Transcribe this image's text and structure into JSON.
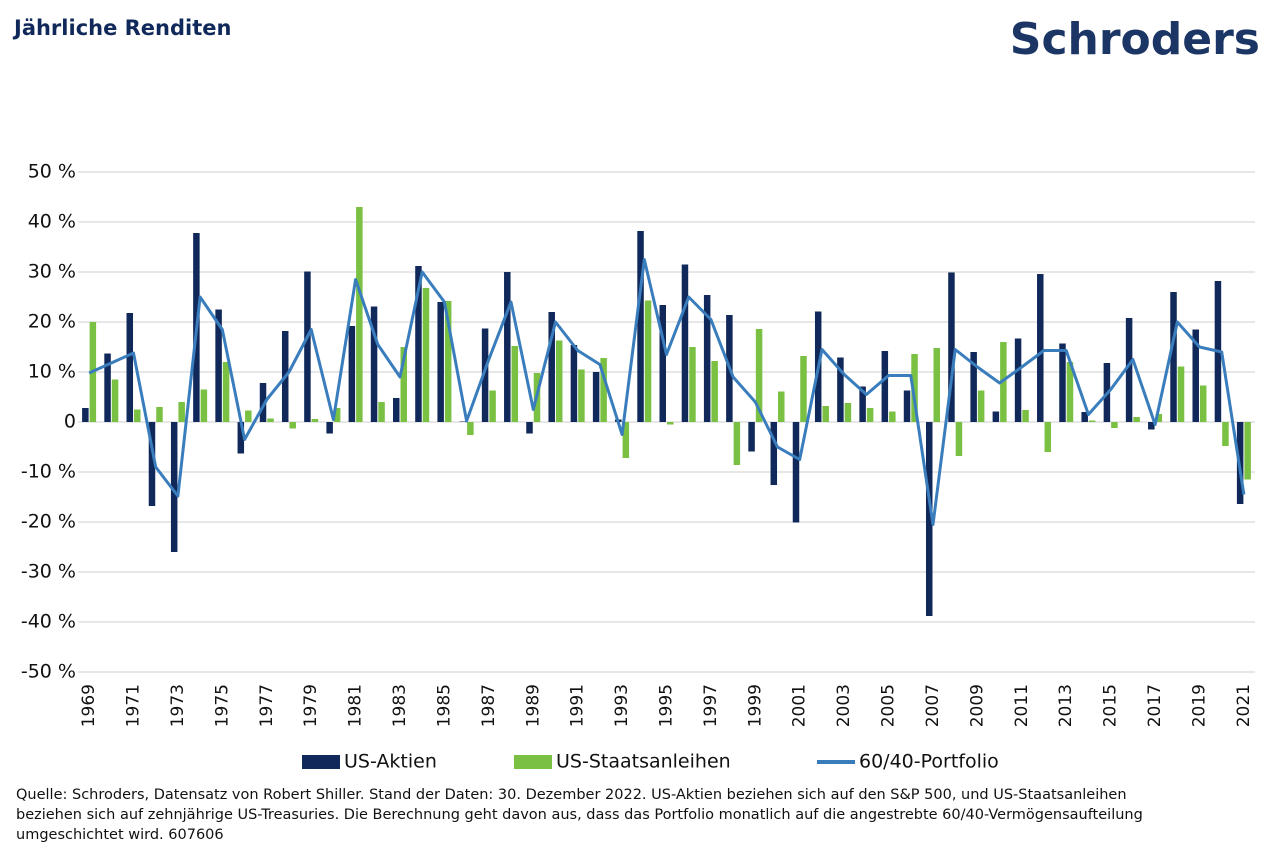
{
  "chart_data": {
    "type": "bar",
    "title": "Jährliche Renditen",
    "logo": "Schroders",
    "categories": [
      "1969",
      null,
      "1971",
      null,
      "1973",
      null,
      "1975",
      null,
      "1977",
      null,
      "1979",
      null,
      "1981",
      null,
      "1983",
      null,
      "1985",
      null,
      "1987",
      null,
      "1989",
      null,
      "1991",
      null,
      "1993",
      null,
      "1995",
      null,
      "1997",
      null,
      "1999",
      null,
      "2001",
      null,
      "2003",
      null,
      "2005",
      null,
      "2007",
      null,
      "2009",
      null,
      "2011",
      null,
      "2013",
      null,
      "2015",
      null,
      "2017",
      null,
      "2019",
      null,
      "2021"
    ],
    "series": [
      {
        "name": "US-Aktien",
        "type": "bar",
        "color": "#10295a",
        "values": [
          2.8,
          13.7,
          21.8,
          -16.8,
          -26,
          37.8,
          22.5,
          -6.3,
          7.8,
          18.2,
          30.1,
          -2.3,
          19.2,
          23.1,
          4.8,
          31.2,
          24,
          0.1,
          18.7,
          30,
          -2.3,
          22,
          15.4,
          10,
          0.5,
          38.2,
          23.4,
          31.5,
          25.4,
          21.4,
          -5.9,
          -12.6,
          -20.1,
          22.1,
          12.9,
          7.1,
          14.2,
          6.3,
          -38.8,
          29.9,
          14,
          2.1,
          16.7,
          29.6,
          15.7,
          2,
          11.8,
          20.8,
          -1.5,
          26,
          18.5,
          28.2,
          -16.4
        ]
      },
      {
        "name": "US-Staatsanleihen",
        "type": "bar",
        "color": "#7ac143",
        "values": [
          20,
          8.5,
          2.5,
          3,
          4,
          6.5,
          12,
          2.3,
          0.7,
          -1.3,
          0.6,
          2.8,
          43,
          4,
          15,
          26.8,
          24.2,
          -2.6,
          6.3,
          15.2,
          9.8,
          16.3,
          10.5,
          12.8,
          -7.2,
          24.3,
          -0.5,
          15,
          12.2,
          -8.6,
          18.6,
          6.1,
          13.2,
          3.2,
          3.8,
          2.8,
          2.1,
          13.6,
          14.8,
          -6.8,
          6.3,
          16,
          2.4,
          -6,
          12,
          0.3,
          -1.2,
          1,
          1.6,
          11.1,
          7.3,
          -4.8,
          -11.5
        ]
      },
      {
        "name": "60/40-Portfolio",
        "type": "line",
        "color": "#3a7dbd",
        "values": [
          9.8,
          11.8,
          13.8,
          -9,
          -14.8,
          25,
          18.5,
          -3.5,
          4.5,
          10,
          18.5,
          0.5,
          28.5,
          15.5,
          9,
          30,
          24,
          0.2,
          12.5,
          24,
          2.5,
          20,
          14.3,
          11.5,
          -2.5,
          32.5,
          13.5,
          25,
          20.5,
          9,
          4,
          -5,
          -7.5,
          14.5,
          9.5,
          5.5,
          9.3,
          9.3,
          -20.5,
          14.5,
          11,
          7.8,
          11,
          14.3,
          14.3,
          1.5,
          6.5,
          12.5,
          -0.5,
          20,
          15,
          14,
          -14.5
        ]
      }
    ],
    "ylim": [
      -50,
      50
    ],
    "yticks": [
      {
        "value": 50,
        "label": "50 %"
      },
      {
        "value": 40,
        "label": "40 %"
      },
      {
        "value": 30,
        "label": "30 %"
      },
      {
        "value": 20,
        "label": "20 %"
      },
      {
        "value": 10,
        "label": "10 %"
      },
      0,
      {
        "value": -10,
        "label": "-10 %"
      },
      {
        "value": -20,
        "label": "-20 %"
      },
      {
        "value": -30,
        "label": "-30 %"
      },
      {
        "value": -40,
        "label": "-40 %"
      },
      {
        "value": -50,
        "label": "-50 %"
      }
    ],
    "grid": true,
    "legend": "bottom",
    "source_note": [
      "Quelle: Schroders, Datensatz von Robert Shiller. Stand der Daten: 30. Dezember 2022. US-Aktien beziehen sich auf den S&P 500, und US-Staatsanleihen",
      "beziehen sich auf zehnjährige US-Treasuries. Die Berechnung geht davon aus, dass das Portfolio monatlich auf die angestrebte 60/40-Vermögensaufteilung",
      "umgeschichtet wird. 607606"
    ]
  }
}
